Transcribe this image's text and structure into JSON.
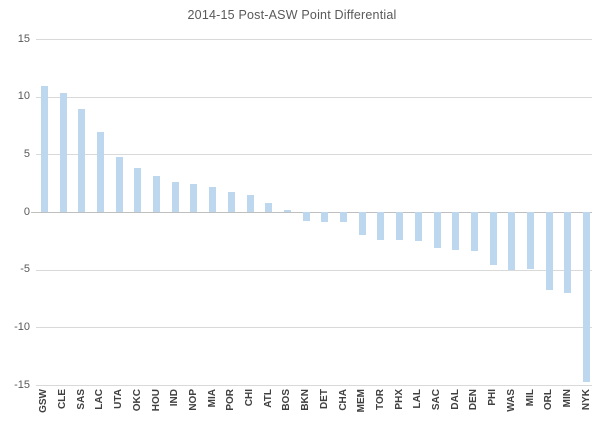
{
  "chart_data": {
    "type": "bar",
    "title": "2014-15 Post-ASW Point Differential",
    "categories": [
      "GSW",
      "CLE",
      "SAS",
      "LAC",
      "UTA",
      "OKC",
      "HOU",
      "IND",
      "NOP",
      "MIA",
      "POR",
      "CHI",
      "ATL",
      "BOS",
      "BKN",
      "DET",
      "CHA",
      "MEM",
      "TOR",
      "PHX",
      "LAL",
      "SAC",
      "DAL",
      "DEN",
      "PHI",
      "WAS",
      "MIL",
      "ORL",
      "MIN",
      "NYK"
    ],
    "values": [
      10.9,
      10.3,
      8.9,
      6.9,
      4.8,
      3.8,
      3.1,
      2.6,
      2.4,
      2.2,
      1.7,
      1.5,
      0.8,
      0.2,
      -0.8,
      -0.9,
      -0.9,
      -2.0,
      -2.4,
      -2.4,
      -2.5,
      -3.1,
      -3.3,
      -3.4,
      -4.6,
      -5.0,
      -4.9,
      -6.8,
      -7.0,
      -14.7
    ],
    "xlabel": "",
    "ylabel": "",
    "ylim": [
      -15,
      15
    ],
    "y_ticks": [
      15,
      10,
      5,
      0,
      -5,
      -10,
      -15
    ],
    "grid": true,
    "legend": false,
    "bar_color": "#BDD7EE",
    "gridline_color": "#D9D9D9",
    "zero_line_color": "#BFBFBF",
    "axis_label_color": "#595959",
    "category_label_color": "#404040",
    "title_color": "#595959",
    "background_color": "#FFFFFF"
  }
}
